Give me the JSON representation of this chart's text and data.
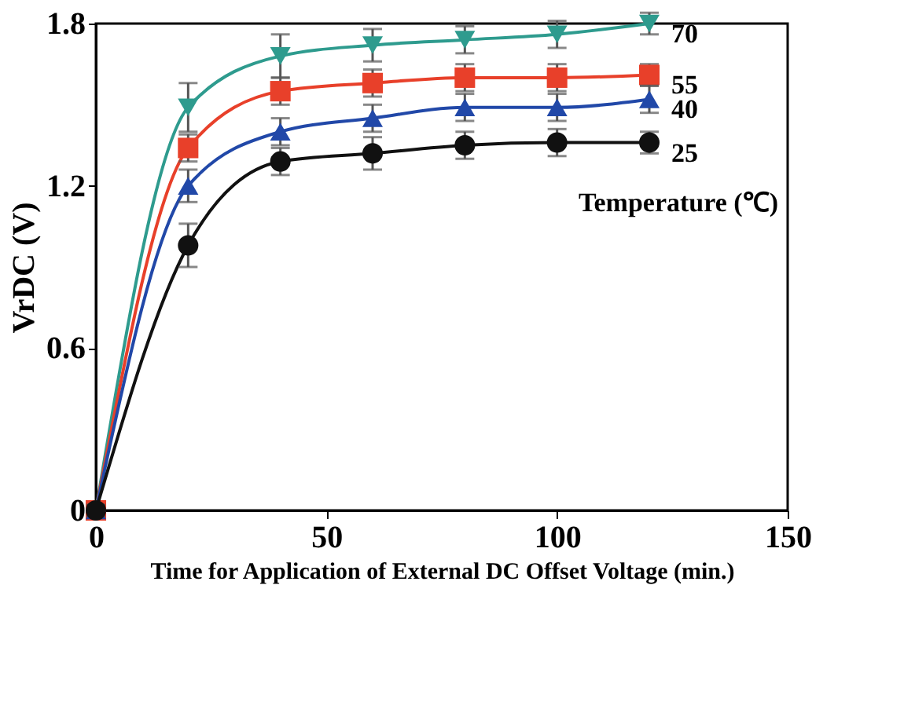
{
  "chart_data": {
    "type": "line",
    "xlabel": "Time for Application of External DC Offset Voltage (min.)",
    "ylabel": "VrDC (V)",
    "legend_title": "Temperature (℃)",
    "x": [
      0,
      20,
      40,
      60,
      80,
      100,
      120
    ],
    "series": [
      {
        "name": "70",
        "color": "#2e9b8e",
        "marker": "triangle-down",
        "values": [
          0,
          1.49,
          1.68,
          1.72,
          1.74,
          1.76,
          1.8
        ],
        "errors": [
          0.02,
          0.09,
          0.08,
          0.06,
          0.05,
          0.05,
          0.04
        ]
      },
      {
        "name": "55",
        "color": "#e8402a",
        "marker": "square",
        "values": [
          0,
          1.34,
          1.55,
          1.58,
          1.6,
          1.6,
          1.61
        ],
        "errors": [
          0.02,
          0.05,
          0.05,
          0.05,
          0.05,
          0.05,
          0.04
        ]
      },
      {
        "name": "40",
        "color": "#2148a8",
        "marker": "triangle",
        "values": [
          0,
          1.2,
          1.4,
          1.45,
          1.49,
          1.49,
          1.52
        ],
        "errors": [
          0.02,
          0.06,
          0.05,
          0.05,
          0.05,
          0.05,
          0.05
        ]
      },
      {
        "name": "25",
        "color": "#111111",
        "marker": "circle",
        "values": [
          0,
          0.98,
          1.29,
          1.32,
          1.35,
          1.36,
          1.36
        ],
        "errors": [
          0.02,
          0.08,
          0.05,
          0.06,
          0.05,
          0.05,
          0.04
        ]
      }
    ],
    "xlim": [
      0,
      150
    ],
    "xticks": [
      0,
      50,
      100,
      150
    ],
    "ylim": [
      0,
      1.8
    ],
    "yticks": [
      0,
      0.6,
      1.2,
      1.8
    ],
    "grid": false,
    "legend": "right",
    "line_style": "solid"
  }
}
